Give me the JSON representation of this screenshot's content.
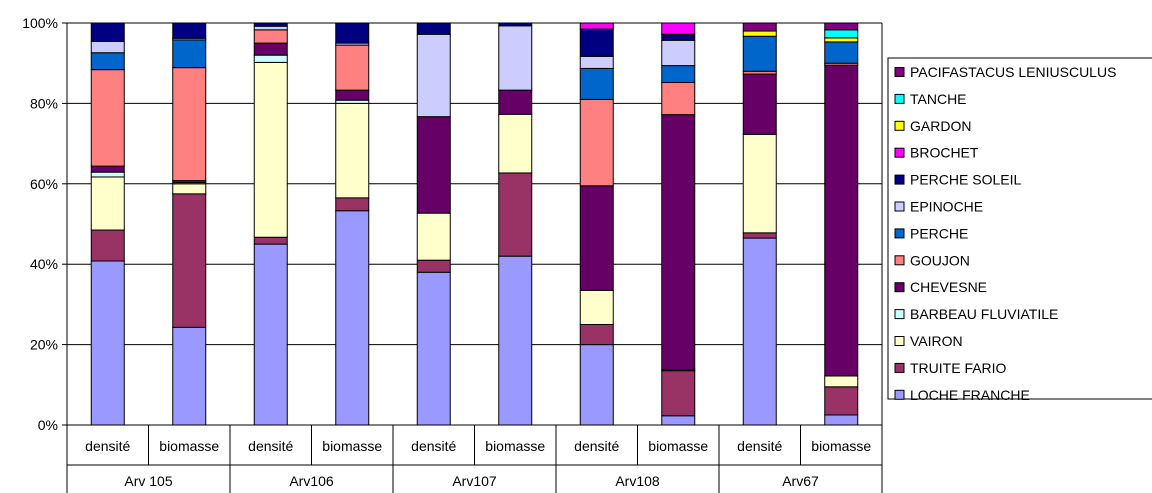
{
  "chart_data": {
    "type": "bar",
    "stacked": true,
    "ylim": [
      0,
      100
    ],
    "y_ticks": [
      "0%",
      "20%",
      "40%",
      "60%",
      "80%",
      "100%"
    ],
    "groups": [
      {
        "name": "Arv 105",
        "measures": [
          "densité",
          "biomasse"
        ]
      },
      {
        "name": "Arv106",
        "measures": [
          "densité",
          "biomasse"
        ]
      },
      {
        "name": "Arv107",
        "measures": [
          "densité",
          "biomasse"
        ]
      },
      {
        "name": "Arv108",
        "measures": [
          "densité",
          "biomasse"
        ]
      },
      {
        "name": "Arv67",
        "measures": [
          "densité",
          "biomasse"
        ]
      }
    ],
    "categories": [
      "Arv 105 densité",
      "Arv 105 biomasse",
      "Arv106 densité",
      "Arv106 biomasse",
      "Arv107 densité",
      "Arv107 biomasse",
      "Arv108 densité",
      "Arv108 biomasse",
      "Arv67 densité",
      "Arv67 biomasse"
    ],
    "series": [
      {
        "name": "LOCHE FRANCHE",
        "color": "#9999ff",
        "values": [
          40.8,
          24.3,
          45.0,
          53.3,
          38.0,
          42.0,
          20.0,
          2.3,
          46.5,
          2.5
        ]
      },
      {
        "name": "TRUITE FARIO",
        "color": "#993366",
        "values": [
          7.7,
          33.2,
          1.7,
          3.2,
          3.0,
          20.7,
          5.0,
          11.2,
          1.3,
          7.0
        ]
      },
      {
        "name": "VAIRON",
        "color": "#ffffcc",
        "values": [
          13.2,
          2.5,
          43.5,
          23.5,
          11.7,
          14.6,
          8.5,
          0.2,
          24.5,
          2.7
        ]
      },
      {
        "name": "BARBEAU FLUVIATILE",
        "color": "#ccffff",
        "values": [
          1.2,
          0.3,
          1.8,
          0.8,
          0.0,
          0.0,
          0.0,
          0.0,
          0.0,
          0.0
        ]
      },
      {
        "name": "CHEVESNE",
        "color": "#660066",
        "values": [
          1.5,
          0.5,
          3.0,
          2.5,
          24.0,
          6.0,
          26.0,
          63.5,
          15.0,
          77.3
        ]
      },
      {
        "name": "GOUJON",
        "color": "#ff8080",
        "values": [
          24.0,
          28.1,
          3.3,
          11.2,
          0.0,
          0.0,
          21.5,
          8.0,
          0.7,
          0.5
        ]
      },
      {
        "name": "PERCHE",
        "color": "#0066cc",
        "values": [
          4.2,
          6.9,
          0.0,
          0.0,
          0.0,
          0.0,
          7.7,
          4.2,
          8.7,
          5.3
        ]
      },
      {
        "name": "EPINOCHE",
        "color": "#ccccff",
        "values": [
          2.8,
          0.4,
          0.9,
          0.5,
          20.5,
          16.0,
          3.0,
          6.3,
          0.0,
          0.0
        ]
      },
      {
        "name": "PERCHE SOLEIL",
        "color": "#000080",
        "values": [
          4.6,
          3.8,
          0.8,
          5.0,
          2.8,
          0.7,
          6.8,
          1.5,
          0.0,
          0.0
        ]
      },
      {
        "name": "BROCHET",
        "color": "#ff00ff",
        "values": [
          0.0,
          0.0,
          0.0,
          0.0,
          0.0,
          0.0,
          1.5,
          2.8,
          0.0,
          0.0
        ]
      },
      {
        "name": "GARDON",
        "color": "#ffff00",
        "values": [
          0.0,
          0.0,
          0.0,
          0.0,
          0.0,
          0.0,
          0.0,
          0.0,
          1.3,
          1.0
        ]
      },
      {
        "name": "TANCHE",
        "color": "#00ffff",
        "values": [
          0.0,
          0.0,
          0.0,
          0.0,
          0.0,
          0.0,
          0.0,
          0.0,
          0.0,
          2.0
        ]
      },
      {
        "name": "PACIFASTACUS LENIUSCULUS",
        "color": "#800080",
        "values": [
          0.0,
          0.0,
          0.0,
          0.0,
          0.0,
          0.0,
          0.0,
          0.0,
          2.0,
          1.7
        ]
      }
    ],
    "legend_position": "right",
    "legend_order": [
      "PACIFASTACUS LENIUSCULUS",
      "TANCHE",
      "GARDON",
      "BROCHET",
      "PERCHE SOLEIL",
      "EPINOCHE",
      "PERCHE",
      "GOUJON",
      "CHEVESNE",
      "BARBEAU FLUVIATILE",
      "VAIRON",
      "TRUITE FARIO",
      "LOCHE FRANCHE"
    ],
    "grid": true
  }
}
